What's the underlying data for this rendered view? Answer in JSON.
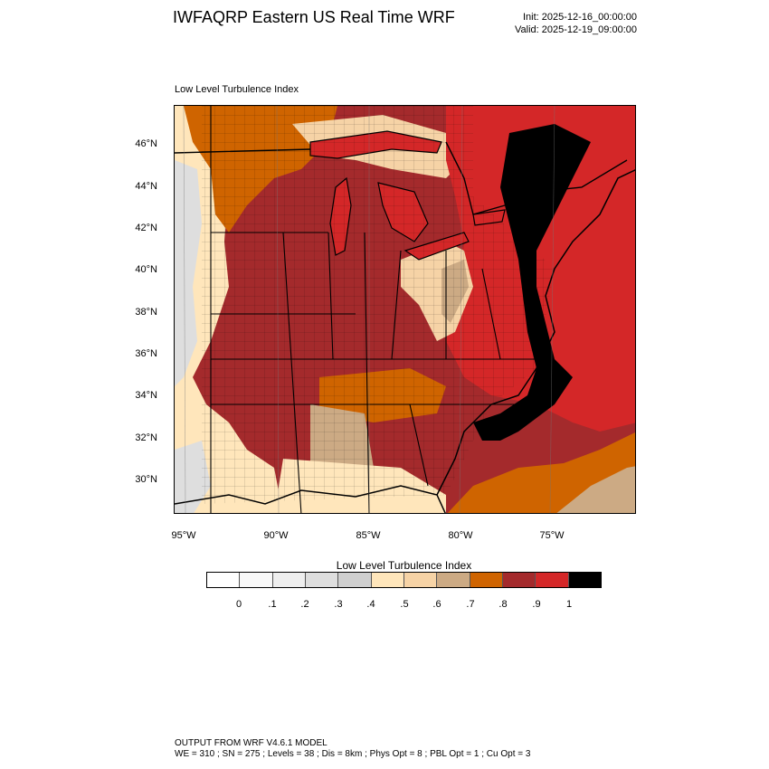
{
  "header": {
    "title": "IWFAQRP Eastern US Real Time WRF",
    "init": "Init: 2025-12-16_00:00:00",
    "valid": "Valid: 2025-12-19_09:00:00"
  },
  "plot": {
    "title": "Low Level Turbulence Index",
    "lat_labels": [
      "46°N",
      "44°N",
      "42°N",
      "40°N",
      "38°N",
      "36°N",
      "34°N",
      "32°N",
      "30°N"
    ],
    "lon_labels": [
      "95°W",
      "90°W",
      "85°W",
      "80°W",
      "75°W"
    ]
  },
  "legend": {
    "title": "Low Level Turbulence Index",
    "ticks": [
      "0",
      ".1",
      ".2",
      ".3",
      ".4",
      ".5",
      ".6",
      ".7",
      ".8",
      ".9",
      "1"
    ],
    "colors": [
      "#ffffff",
      "#f8f8f8",
      "#eeeeee",
      "#dedede",
      "#cfcfcf",
      "#ffe6bb",
      "#f6d3a6",
      "#ccaa84",
      "#cf6400",
      "#a42a2c",
      "#d42728",
      "#000000"
    ]
  },
  "footer": {
    "line1": "OUTPUT FROM WRF V4.6.1 MODEL",
    "line2": "WE = 310 ; SN = 275 ; Levels = 38 ; Dis = 8km ; Phys Opt = 8 ; PBL Opt = 1 ; Cu Opt = 3"
  }
}
